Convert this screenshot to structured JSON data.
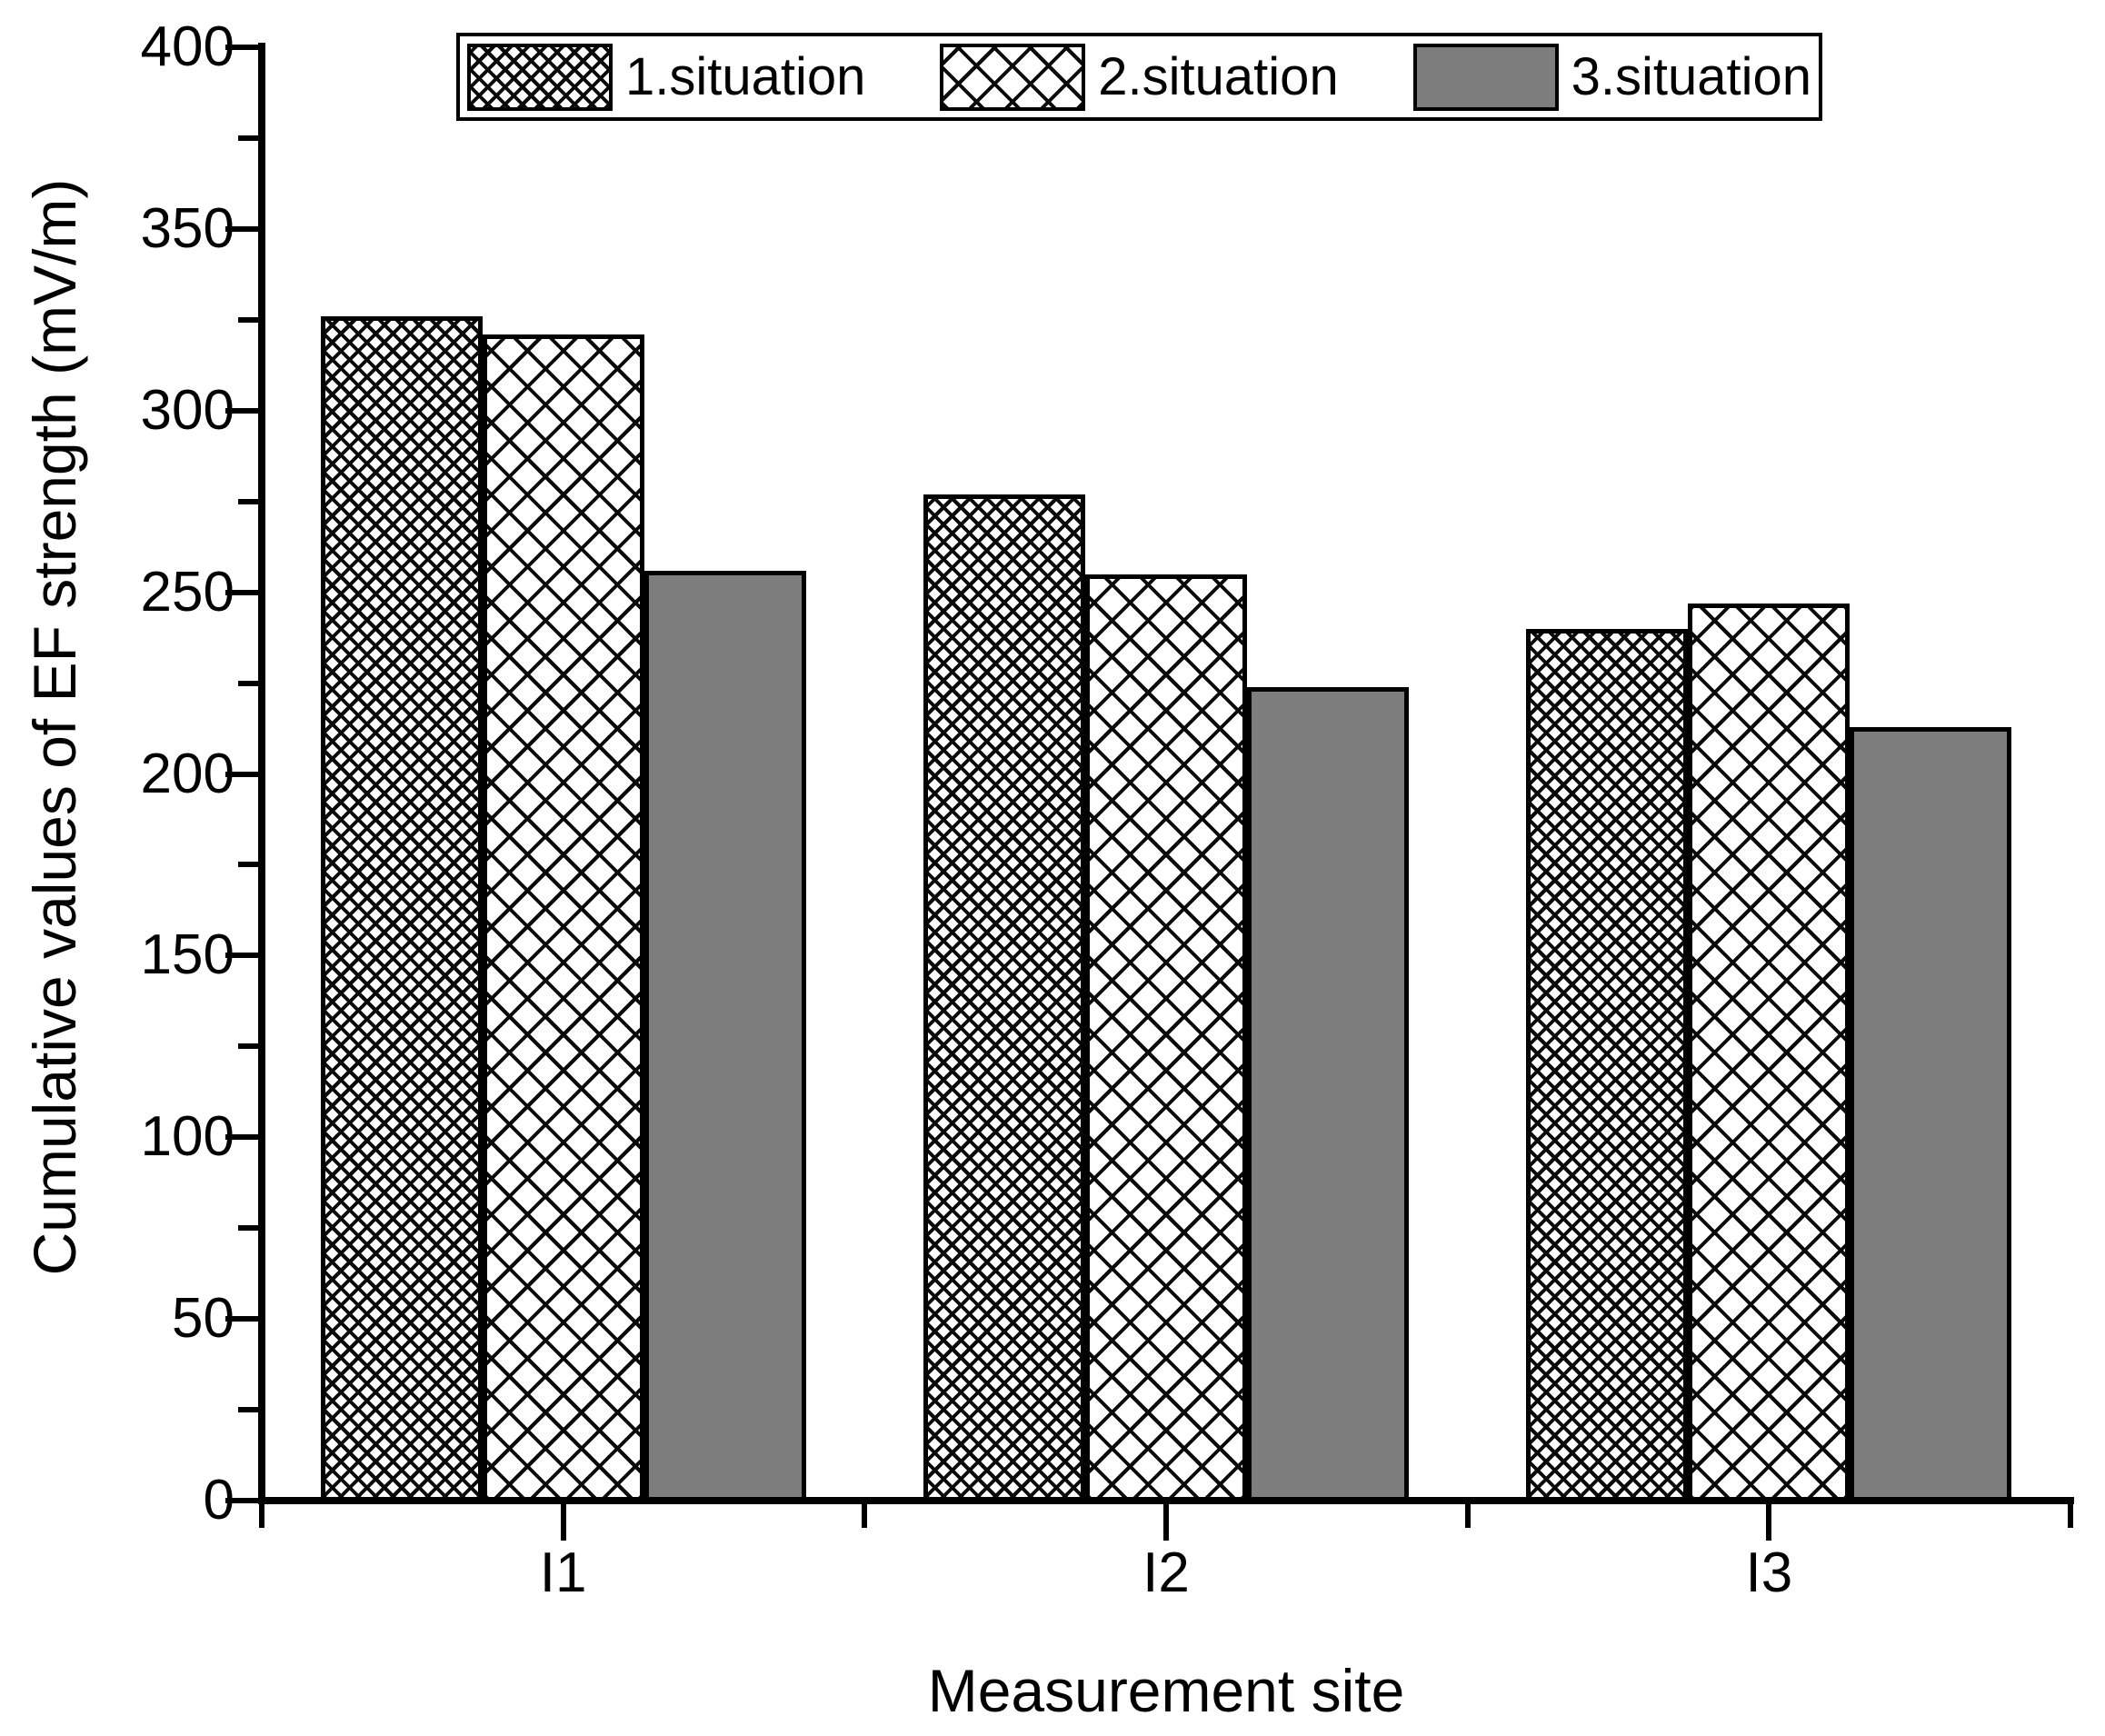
{
  "chart_data": {
    "type": "bar",
    "title": "",
    "xlabel": "Measurement site",
    "ylabel": "Cumulative values of EF strength (mV/m)",
    "categories": [
      "I1",
      "I2",
      "I3"
    ],
    "series": [
      {
        "name": "1.situation",
        "pattern": "dense-crosshatch",
        "values": [
          326,
          277,
          240
        ]
      },
      {
        "name": "2.situation",
        "pattern": "wide-crosshatch",
        "values": [
          321,
          255,
          247
        ]
      },
      {
        "name": "3.situation",
        "pattern": "solid-gray",
        "values": [
          256,
          224,
          213
        ]
      }
    ],
    "ylim": [
      0,
      400
    ],
    "ytick_step": 50,
    "yminor_step": 25,
    "ytick_labels": [
      "0",
      "50",
      "100",
      "150",
      "200",
      "250",
      "300",
      "350",
      "400"
    ],
    "grid": false,
    "legend_position": "top-center",
    "colors": {
      "bar_gray": "#7d7d7d",
      "hatch": "#000000",
      "axis": "#000000",
      "text": "#000000",
      "background": "#ffffff"
    }
  }
}
